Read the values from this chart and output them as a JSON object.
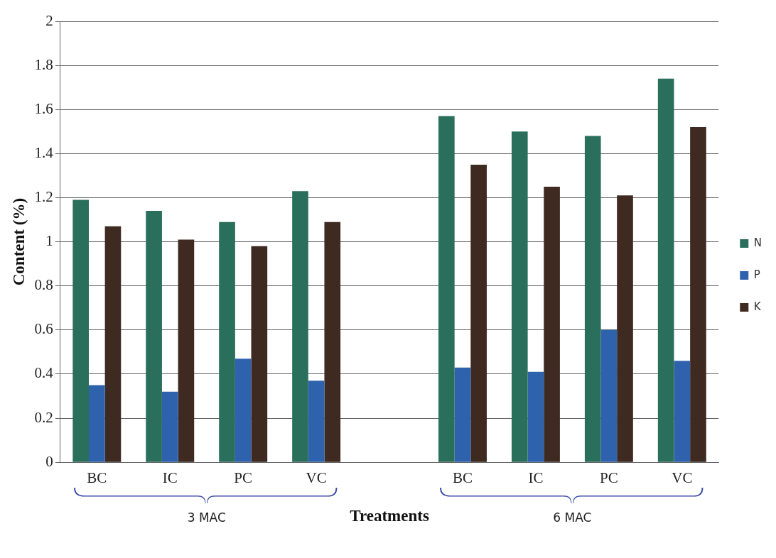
{
  "chart_data": {
    "type": "bar",
    "xlabel": "Treatments",
    "ylabel": "Content (%)",
    "categories": [
      "BC",
      "IC",
      "PC",
      "VC",
      null,
      "BC",
      "IC",
      "PC",
      "VC"
    ],
    "series": [
      {
        "name": "N",
        "color": "#2a6e5c",
        "values": [
          1.19,
          1.14,
          1.09,
          1.23,
          null,
          1.57,
          1.5,
          1.48,
          1.74
        ]
      },
      {
        "name": "P",
        "color": "#2f62ad",
        "values": [
          0.35,
          0.32,
          0.47,
          0.37,
          null,
          0.43,
          0.41,
          0.6,
          0.46
        ]
      },
      {
        "name": "K",
        "color": "#3f2a22",
        "values": [
          1.07,
          1.01,
          0.98,
          1.09,
          null,
          1.35,
          1.25,
          1.21,
          1.52
        ]
      }
    ],
    "ylim": [
      0,
      2
    ],
    "yticks": [
      0,
      0.2,
      0.4,
      0.6,
      0.8,
      1,
      1.2,
      1.4,
      1.6,
      1.8,
      2
    ],
    "grid": "y",
    "legend": "right",
    "annotations": [
      "3 MAC",
      "6 MAC"
    ]
  }
}
